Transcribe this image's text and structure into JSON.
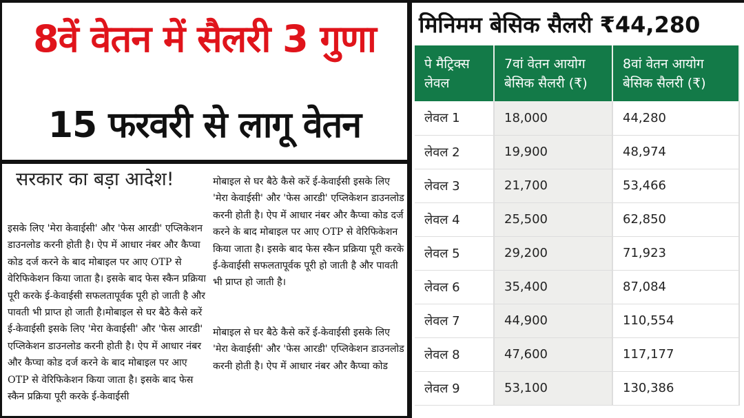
{
  "left": {
    "headline1": "8वें वेतन में सैलरी 3 गुणा",
    "headline2": "15 फरवरी से लागू वेतन",
    "subheading": "सरकार का बड़ा आदेश!",
    "paragraph1": "इसके लिए 'मेरा केवाईसी' और 'फेस आरडी' एप्लिकेशन डाउनलोड करनी होती है। ऐप में आधार नंबर और कैप्चा कोड दर्ज करने के बाद मोबाइल पर आए OTP से वेरिफिकेशन किया जाता है। इसके बाद फेस स्कैन प्रक्रिया पूरी करके ई-केवाईसी सफलतापूर्वक पूरी हो जाती है और पावती भी प्राप्त हो जाती है।मोबाइल से घर बैठे कैसे करें ई-केवाईसी इसके लिए 'मेरा केवाईसी' और 'फेस आरडी' एप्लिकेशन डाउनलोड करनी होती है। ऐप में आधार नंबर और कैप्चा कोड दर्ज करने के बाद मोबाइल पर आए OTP से वेरिफिकेशन किया जाता है। इसके बाद फेस स्कैन प्रक्रिया पूरी करके ई-केवाईसी",
    "paragraph2": "मोबाइल से घर बैठे कैसे करें ई-केवाईसी इसके लिए 'मेरा केवाईसी' और 'फेस आरडी' एप्लिकेशन डाउनलोड करनी होती है। ऐप में आधार नंबर और कैप्चा कोड दर्ज करने के बाद मोबाइल पर आए OTP से वेरिफिकेशन किया जाता है। इसके बाद फेस स्कैन प्रक्रिया पूरी करके ई-केवाईसी सफलतापूर्वक पूरी हो जाती है और पावती भी प्राप्त हो जाती है।",
    "paragraph3": "मोबाइल से घर बैठे कैसे करें ई-केवाईसी इसके लिए 'मेरा केवाईसी' और 'फेस आरडी' एप्लिकेशन डाउनलोड करनी होती है। ऐप में आधार नंबर और कैप्चा कोड"
  },
  "right": {
    "title": "मिनिमम बेसिक सैलरी ₹44,280",
    "headers": [
      "पे मैट्रिक्स लेवल",
      "7वां वेतन आयोग बेसिक सैलरी (₹)",
      "8वां वेतन आयोग बेसिक सैलरी (₹)"
    ],
    "header_color": "#137a48",
    "rows": [
      [
        "लेवल 1",
        "18,000",
        "44,280"
      ],
      [
        "लेवल 2",
        "19,900",
        "48,974"
      ],
      [
        "लेवल 3",
        "21,700",
        "53,466"
      ],
      [
        "लेवल 4",
        "25,500",
        "62,850"
      ],
      [
        "लेवल 5",
        "29,200",
        "71,923"
      ],
      [
        "लेवल 6",
        "35,400",
        "87,084"
      ],
      [
        "लेवल 7",
        "44,900",
        "110,554"
      ],
      [
        "लेवल 8",
        "47,600",
        "117,177"
      ],
      [
        "लेवल 9",
        "53,100",
        "130,386"
      ]
    ]
  }
}
